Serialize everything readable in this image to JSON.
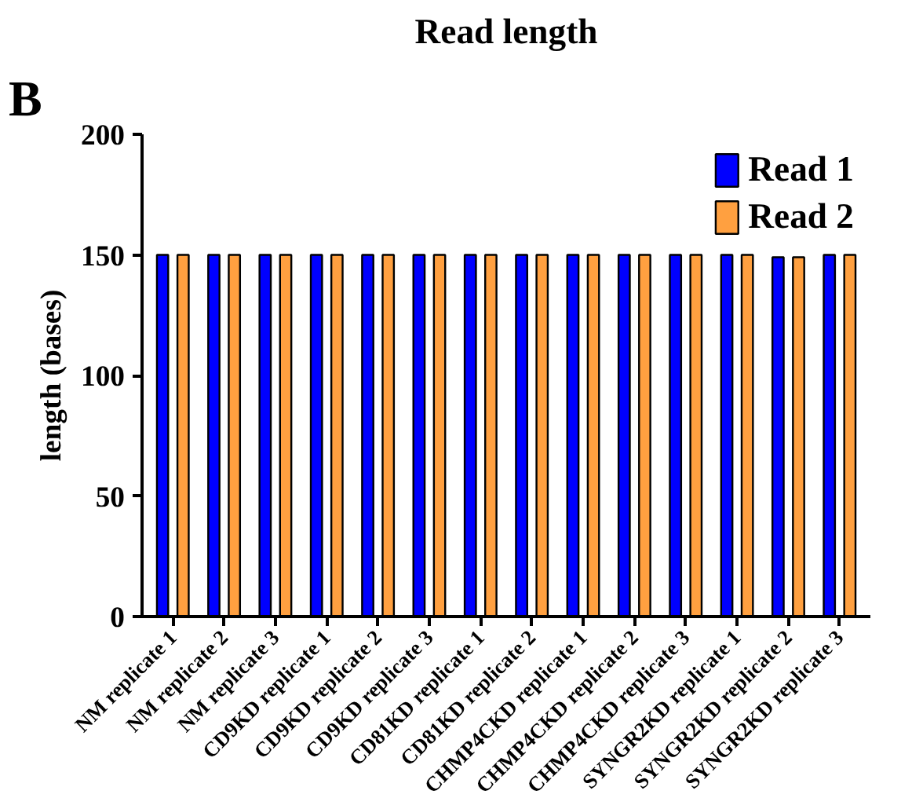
{
  "chart_data": {
    "type": "bar",
    "title": "Read length",
    "ylabel": "length (bases)",
    "annotations": [
      "B"
    ],
    "categories": [
      "NM replicate 1",
      "NM replicate 2",
      "NM replicate 3",
      "CD9KD replicate 1",
      "CD9KD replicate 2",
      "CD9KD replicate 3",
      "CD81KD replicate 1",
      "CD81KD replicate 2",
      "CHMP4CKD replicate 1",
      "CHMP4CKD replicate 2",
      "CHMP4CKD replicate 3",
      "SYNGR2KD replicate 1",
      "SYNGR2KD replicate 2",
      "SYNGR2KD replicate 3"
    ],
    "series": [
      {
        "name": "Read 1",
        "color": "#0000ff",
        "values": [
          150,
          150,
          150,
          150,
          150,
          150,
          150,
          150,
          150,
          150,
          150,
          150,
          149,
          150
        ]
      },
      {
        "name": "Read 2",
        "color": "#ffa040",
        "values": [
          150,
          150,
          150,
          150,
          150,
          150,
          150,
          150,
          150,
          150,
          150,
          150,
          149,
          150
        ]
      }
    ],
    "ylim": [
      0,
      200
    ],
    "yticks": [
      0,
      50,
      100,
      150,
      200
    ],
    "grid": false,
    "legend": "top right"
  }
}
